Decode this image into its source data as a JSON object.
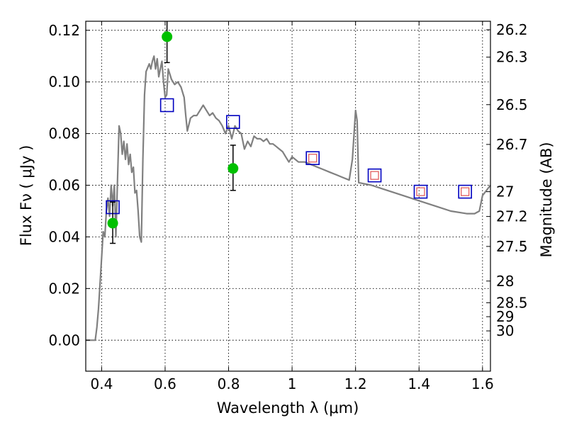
{
  "chart_data": {
    "type": "scatter",
    "xlabel": "Wavelength  λ (μm)",
    "ylabel_left": "Flux  Fν  ( μJy )",
    "ylabel_right": "Magnitude (AB)",
    "xlim": [
      0.35,
      1.625
    ],
    "ylim": [
      -0.012,
      0.1235
    ],
    "x_ticks": [
      0.4,
      0.6,
      0.8,
      1.0,
      1.2,
      1.4,
      1.6
    ],
    "x_tick_labels": [
      "0.4",
      "0.6",
      "0.8",
      "1",
      "1.2",
      "1.4",
      "1.6"
    ],
    "y_ticks": [
      0.0,
      0.02,
      0.04,
      0.06,
      0.08,
      0.1,
      0.12
    ],
    "y_tick_labels": [
      "0.00",
      "0.02",
      "0.04",
      "0.06",
      "0.08",
      "0.10",
      "0.12"
    ],
    "right_ticks": [
      {
        "label": "26.2",
        "flux": 0.1202
      },
      {
        "label": "26.3",
        "flux": 0.1096
      },
      {
        "label": "26.5",
        "flux": 0.0912
      },
      {
        "label": "26.7",
        "flux": 0.0758
      },
      {
        "label": "27",
        "flux": 0.0575
      },
      {
        "label": "27.2",
        "flux": 0.0479
      },
      {
        "label": "27.5",
        "flux": 0.0363
      },
      {
        "label": "28",
        "flux": 0.0229
      },
      {
        "label": "28.5",
        "flux": 0.0145
      },
      {
        "label": "29",
        "flux": 0.0091
      },
      {
        "label": "30",
        "flux": 0.0036
      }
    ],
    "grid": true,
    "colors": {
      "sed_line": "#808080",
      "observed": "#00c000",
      "model_box": "#0000c0",
      "model_inner_box": "#e05050",
      "errorbar": "#000000"
    },
    "series": [
      {
        "kind": "line",
        "points": [
          [
            0.35,
            0.0
          ],
          [
            0.38,
            0.0
          ],
          [
            0.385,
            0.005
          ],
          [
            0.39,
            0.012
          ],
          [
            0.395,
            0.022
          ],
          [
            0.4,
            0.032
          ],
          [
            0.405,
            0.042
          ],
          [
            0.41,
            0.04
          ],
          [
            0.415,
            0.05
          ],
          [
            0.42,
            0.055
          ],
          [
            0.425,
            0.048
          ],
          [
            0.43,
            0.06
          ],
          [
            0.435,
            0.052
          ],
          [
            0.44,
            0.06
          ],
          [
            0.445,
            0.04
          ],
          [
            0.45,
            0.062
          ],
          [
            0.455,
            0.083
          ],
          [
            0.46,
            0.08
          ],
          [
            0.465,
            0.072
          ],
          [
            0.47,
            0.077
          ],
          [
            0.475,
            0.07
          ],
          [
            0.48,
            0.076
          ],
          [
            0.485,
            0.068
          ],
          [
            0.49,
            0.072
          ],
          [
            0.495,
            0.065
          ],
          [
            0.5,
            0.067
          ],
          [
            0.505,
            0.057
          ],
          [
            0.51,
            0.058
          ],
          [
            0.515,
            0.05
          ],
          [
            0.52,
            0.04
          ],
          [
            0.525,
            0.038
          ],
          [
            0.53,
            0.07
          ],
          [
            0.535,
            0.095
          ],
          [
            0.54,
            0.104
          ],
          [
            0.55,
            0.107
          ],
          [
            0.555,
            0.105
          ],
          [
            0.56,
            0.108
          ],
          [
            0.565,
            0.11
          ],
          [
            0.57,
            0.105
          ],
          [
            0.575,
            0.109
          ],
          [
            0.58,
            0.102
          ],
          [
            0.585,
            0.105
          ],
          [
            0.59,
            0.108
          ],
          [
            0.595,
            0.1
          ],
          [
            0.6,
            0.094
          ],
          [
            0.605,
            0.095
          ],
          [
            0.61,
            0.105
          ],
          [
            0.62,
            0.101
          ],
          [
            0.63,
            0.099
          ],
          [
            0.64,
            0.1
          ],
          [
            0.65,
            0.098
          ],
          [
            0.66,
            0.094
          ],
          [
            0.665,
            0.087
          ],
          [
            0.67,
            0.081
          ],
          [
            0.68,
            0.086
          ],
          [
            0.69,
            0.087
          ],
          [
            0.7,
            0.087
          ],
          [
            0.71,
            0.089
          ],
          [
            0.72,
            0.091
          ],
          [
            0.73,
            0.089
          ],
          [
            0.74,
            0.087
          ],
          [
            0.75,
            0.088
          ],
          [
            0.76,
            0.086
          ],
          [
            0.77,
            0.085
          ],
          [
            0.78,
            0.083
          ],
          [
            0.79,
            0.08
          ],
          [
            0.8,
            0.083
          ],
          [
            0.81,
            0.078
          ],
          [
            0.82,
            0.083
          ],
          [
            0.83,
            0.081
          ],
          [
            0.84,
            0.08
          ],
          [
            0.85,
            0.074
          ],
          [
            0.86,
            0.077
          ],
          [
            0.87,
            0.075
          ],
          [
            0.88,
            0.079
          ],
          [
            0.89,
            0.078
          ],
          [
            0.9,
            0.078
          ],
          [
            0.91,
            0.077
          ],
          [
            0.92,
            0.078
          ],
          [
            0.93,
            0.076
          ],
          [
            0.94,
            0.076
          ],
          [
            0.95,
            0.075
          ],
          [
            0.96,
            0.074
          ],
          [
            0.97,
            0.073
          ],
          [
            0.98,
            0.071
          ],
          [
            0.99,
            0.069
          ],
          [
            1.0,
            0.071
          ],
          [
            1.02,
            0.069
          ],
          [
            1.04,
            0.069
          ],
          [
            1.06,
            0.068
          ],
          [
            1.08,
            0.067
          ],
          [
            1.1,
            0.066
          ],
          [
            1.12,
            0.065
          ],
          [
            1.14,
            0.064
          ],
          [
            1.16,
            0.063
          ],
          [
            1.18,
            0.062
          ],
          [
            1.19,
            0.07
          ],
          [
            1.2,
            0.089
          ],
          [
            1.205,
            0.085
          ],
          [
            1.21,
            0.061
          ],
          [
            1.25,
            0.06
          ],
          [
            1.3,
            0.058
          ],
          [
            1.35,
            0.056
          ],
          [
            1.4,
            0.054
          ],
          [
            1.45,
            0.052
          ],
          [
            1.5,
            0.05
          ],
          [
            1.55,
            0.049
          ],
          [
            1.575,
            0.049
          ],
          [
            1.59,
            0.05
          ],
          [
            1.6,
            0.056
          ],
          [
            1.625,
            0.06
          ]
        ]
      },
      {
        "kind": "observed_points",
        "points": [
          {
            "x": 0.435,
            "y": 0.0453,
            "err_low": 0.0375,
            "err_high": 0.0535
          },
          {
            "x": 0.606,
            "y": 0.1175,
            "err_low": 0.1075,
            "err_high": 0.1235
          },
          {
            "x": 0.814,
            "y": 0.0665,
            "err_low": 0.058,
            "err_high": 0.0755
          }
        ]
      },
      {
        "kind": "model_boxes",
        "points": [
          {
            "x": 0.435,
            "y": 0.0515
          },
          {
            "x": 0.606,
            "y": 0.091
          },
          {
            "x": 0.814,
            "y": 0.0845
          }
        ]
      },
      {
        "kind": "model_boxes_nested",
        "points": [
          {
            "x": 1.065,
            "y": 0.0705
          },
          {
            "x": 1.26,
            "y": 0.0638
          },
          {
            "x": 1.405,
            "y": 0.0575
          },
          {
            "x": 1.545,
            "y": 0.0575
          }
        ]
      }
    ]
  }
}
